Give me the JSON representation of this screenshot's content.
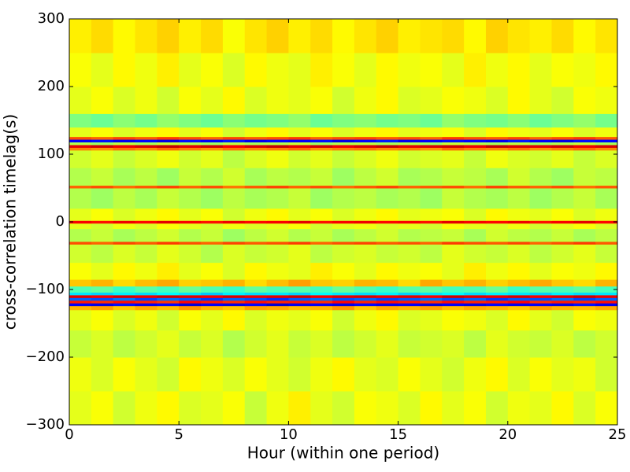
{
  "chart_data": {
    "type": "heatmap",
    "xlabel": "Hour (within one period)",
    "ylabel": "cross-correlation timelag(s)",
    "colormap": "jet",
    "zlim": [
      0,
      1
    ],
    "xlim": [
      0,
      25
    ],
    "ylim": [
      -300,
      300
    ],
    "xticks": [
      0,
      5,
      10,
      15,
      20,
      25
    ],
    "yticks": [
      {
        "value": -300,
        "label": "−300"
      },
      {
        "value": -200,
        "label": "−200"
      },
      {
        "value": -100,
        "label": "−100"
      },
      0,
      100,
      200,
      300
    ],
    "x": [
      0,
      1,
      2,
      3,
      4,
      5,
      6,
      7,
      8,
      9,
      10,
      11,
      12,
      13,
      14,
      15,
      16,
      17,
      18,
      19,
      20,
      21,
      22,
      23,
      24,
      25
    ],
    "y": [
      -300,
      -250,
      -200,
      -160,
      -130,
      -124,
      -120,
      -116,
      -112,
      -108,
      -104,
      -95,
      -85,
      -60,
      -33,
      -29,
      -10,
      -2,
      2,
      20,
      50,
      54,
      80,
      106,
      110,
      114,
      118,
      122,
      126,
      140,
      160,
      200,
      250,
      300
    ],
    "z": [
      [
        0.6,
        0.62,
        0.58,
        0.61,
        0.63,
        0.59,
        0.6,
        0.62,
        0.57,
        0.61,
        0.64,
        0.6,
        0.58,
        0.62,
        0.61,
        0.59,
        0.63,
        0.6,
        0.62,
        0.58,
        0.61,
        0.6,
        0.63,
        0.59,
        0.62
      ],
      [
        0.61,
        0.59,
        0.62,
        0.6,
        0.58,
        0.63,
        0.61,
        0.59,
        0.62,
        0.6,
        0.58,
        0.61,
        0.63,
        0.6,
        0.59,
        0.62,
        0.6,
        0.58,
        0.61,
        0.63,
        0.59,
        0.62,
        0.6,
        0.61,
        0.58
      ],
      [
        0.57,
        0.59,
        0.56,
        0.58,
        0.6,
        0.57,
        0.59,
        0.55,
        0.58,
        0.6,
        0.57,
        0.59,
        0.56,
        0.58,
        0.6,
        0.57,
        0.58,
        0.59,
        0.56,
        0.6,
        0.58,
        0.57,
        0.59,
        0.56,
        0.58
      ],
      [
        0.6,
        0.62,
        0.59,
        0.61,
        0.58,
        0.62,
        0.6,
        0.63,
        0.59,
        0.61,
        0.6,
        0.62,
        0.58,
        0.61,
        0.63,
        0.59,
        0.6,
        0.62,
        0.61,
        0.59,
        0.63,
        0.6,
        0.58,
        0.62,
        0.61
      ],
      [
        0.7,
        0.72,
        0.68,
        0.71,
        0.69,
        0.73,
        0.7,
        0.68,
        0.72,
        0.71,
        0.69,
        0.7,
        0.73,
        0.68,
        0.71,
        0.7,
        0.72,
        0.69,
        0.71,
        0.7,
        0.68,
        0.72,
        0.7,
        0.69,
        0.71
      ],
      [
        0.12,
        0.1,
        0.14,
        0.11,
        0.13,
        0.09,
        0.12,
        0.1,
        0.13,
        0.08,
        0.11,
        0.12,
        0.1,
        0.13,
        0.11,
        0.12,
        0.09,
        0.12,
        0.1,
        0.13,
        0.11,
        0.12,
        0.1,
        0.14,
        0.11
      ],
      [
        0.85,
        0.83,
        0.86,
        0.84,
        0.82,
        0.87,
        0.85,
        0.83,
        0.86,
        0.84,
        0.85,
        0.83,
        0.87,
        0.84,
        0.86,
        0.85,
        0.83,
        0.86,
        0.84,
        0.85,
        0.87,
        0.83,
        0.85,
        0.84,
        0.86
      ],
      [
        0.22,
        0.2,
        0.24,
        0.19,
        0.23,
        0.21,
        0.18,
        0.22,
        0.2,
        0.17,
        0.21,
        0.23,
        0.2,
        0.22,
        0.19,
        0.21,
        0.23,
        0.2,
        0.22,
        0.18,
        0.21,
        0.2,
        0.23,
        0.19,
        0.22
      ],
      [
        0.9,
        0.88,
        0.91,
        0.89,
        0.92,
        0.9,
        0.88,
        0.91,
        0.89,
        0.9,
        0.92,
        0.88,
        0.9,
        0.91,
        0.89,
        0.9,
        0.88,
        0.92,
        0.9,
        0.89,
        0.91,
        0.88,
        0.9,
        0.92,
        0.89
      ],
      [
        0.35,
        0.33,
        0.36,
        0.34,
        0.37,
        0.35,
        0.32,
        0.36,
        0.34,
        0.35,
        0.33,
        0.37,
        0.35,
        0.34,
        0.36,
        0.33,
        0.35,
        0.37,
        0.34,
        0.36,
        0.35,
        0.33,
        0.36,
        0.34,
        0.35
      ],
      [
        0.45,
        0.47,
        0.43,
        0.46,
        0.44,
        0.48,
        0.45,
        0.43,
        0.47,
        0.45,
        0.46,
        0.44,
        0.48,
        0.45,
        0.43,
        0.46,
        0.47,
        0.44,
        0.45,
        0.48,
        0.43,
        0.46,
        0.45,
        0.47,
        0.44
      ],
      [
        0.68,
        0.7,
        0.66,
        0.69,
        0.71,
        0.67,
        0.68,
        0.7,
        0.66,
        0.69,
        0.72,
        0.68,
        0.67,
        0.7,
        0.69,
        0.66,
        0.71,
        0.68,
        0.7,
        0.67,
        0.69,
        0.71,
        0.68,
        0.66,
        0.7
      ],
      [
        0.62,
        0.6,
        0.63,
        0.61,
        0.64,
        0.6,
        0.62,
        0.59,
        0.63,
        0.61,
        0.6,
        0.64,
        0.62,
        0.6,
        0.63,
        0.61,
        0.62,
        0.6,
        0.64,
        0.61,
        0.63,
        0.6,
        0.62,
        0.61,
        0.63
      ],
      [
        0.58,
        0.56,
        0.59,
        0.57,
        0.6,
        0.58,
        0.55,
        0.59,
        0.57,
        0.58,
        0.6,
        0.56,
        0.58,
        0.59,
        0.57,
        0.58,
        0.56,
        0.6,
        0.58,
        0.57,
        0.59,
        0.56,
        0.58,
        0.6,
        0.57
      ],
      [
        0.8,
        0.78,
        0.81,
        0.79,
        0.82,
        0.8,
        0.78,
        0.81,
        0.79,
        0.8,
        0.82,
        0.78,
        0.8,
        0.81,
        0.79,
        0.8,
        0.78,
        0.82,
        0.8,
        0.79,
        0.81,
        0.78,
        0.8,
        0.82,
        0.79
      ],
      [
        0.55,
        0.57,
        0.54,
        0.56,
        0.58,
        0.55,
        0.57,
        0.53,
        0.56,
        0.58,
        0.55,
        0.57,
        0.54,
        0.56,
        0.58,
        0.55,
        0.56,
        0.57,
        0.54,
        0.58,
        0.56,
        0.55,
        0.57,
        0.54,
        0.56
      ],
      [
        0.6,
        0.58,
        0.61,
        0.59,
        0.62,
        0.6,
        0.58,
        0.61,
        0.59,
        0.6,
        0.62,
        0.58,
        0.6,
        0.61,
        0.59,
        0.6,
        0.58,
        0.62,
        0.6,
        0.59,
        0.61,
        0.58,
        0.6,
        0.62,
        0.59
      ],
      [
        0.88,
        0.86,
        0.89,
        0.87,
        0.9,
        0.88,
        0.86,
        0.89,
        0.87,
        0.88,
        0.9,
        0.86,
        0.88,
        0.89,
        0.87,
        0.88,
        0.86,
        0.9,
        0.88,
        0.87,
        0.89,
        0.86,
        0.88,
        0.9,
        0.87
      ],
      [
        0.6,
        0.62,
        0.59,
        0.61,
        0.63,
        0.6,
        0.62,
        0.58,
        0.61,
        0.63,
        0.6,
        0.62,
        0.59,
        0.61,
        0.63,
        0.6,
        0.61,
        0.62,
        0.59,
        0.63,
        0.61,
        0.6,
        0.62,
        0.59,
        0.61
      ],
      [
        0.55,
        0.53,
        0.56,
        0.54,
        0.57,
        0.55,
        0.53,
        0.56,
        0.54,
        0.55,
        0.57,
        0.53,
        0.55,
        0.56,
        0.54,
        0.55,
        0.53,
        0.57,
        0.55,
        0.54,
        0.56,
        0.53,
        0.55,
        0.57,
        0.54
      ],
      [
        0.78,
        0.8,
        0.77,
        0.79,
        0.81,
        0.78,
        0.8,
        0.76,
        0.79,
        0.81,
        0.78,
        0.8,
        0.77,
        0.79,
        0.81,
        0.78,
        0.79,
        0.8,
        0.77,
        0.81,
        0.79,
        0.78,
        0.8,
        0.77,
        0.79
      ],
      [
        0.55,
        0.57,
        0.54,
        0.56,
        0.53,
        0.57,
        0.55,
        0.58,
        0.54,
        0.56,
        0.55,
        0.57,
        0.53,
        0.56,
        0.58,
        0.54,
        0.55,
        0.57,
        0.56,
        0.54,
        0.58,
        0.55,
        0.53,
        0.57,
        0.56
      ],
      [
        0.58,
        0.6,
        0.57,
        0.59,
        0.61,
        0.58,
        0.6,
        0.56,
        0.59,
        0.61,
        0.58,
        0.6,
        0.57,
        0.59,
        0.61,
        0.58,
        0.59,
        0.6,
        0.57,
        0.61,
        0.59,
        0.58,
        0.6,
        0.57,
        0.59
      ],
      [
        0.75,
        0.73,
        0.76,
        0.74,
        0.77,
        0.75,
        0.73,
        0.76,
        0.74,
        0.75,
        0.77,
        0.73,
        0.75,
        0.76,
        0.74,
        0.75,
        0.73,
        0.77,
        0.75,
        0.74,
        0.76,
        0.73,
        0.75,
        0.77,
        0.74
      ],
      [
        0.9,
        0.92,
        0.89,
        0.91,
        0.93,
        0.9,
        0.92,
        0.88,
        0.91,
        0.93,
        0.9,
        0.92,
        0.89,
        0.91,
        0.93,
        0.9,
        0.91,
        0.92,
        0.89,
        0.93,
        0.91,
        0.9,
        0.92,
        0.89,
        0.91
      ],
      [
        0.55,
        0.53,
        0.56,
        0.54,
        0.57,
        0.55,
        0.53,
        0.56,
        0.54,
        0.55,
        0.57,
        0.53,
        0.55,
        0.56,
        0.54,
        0.55,
        0.53,
        0.57,
        0.55,
        0.54,
        0.56,
        0.53,
        0.55,
        0.57,
        0.54
      ],
      [
        0.12,
        0.14,
        0.11,
        0.13,
        0.1,
        0.14,
        0.12,
        0.15,
        0.11,
        0.13,
        0.12,
        0.14,
        0.1,
        0.13,
        0.15,
        0.11,
        0.12,
        0.14,
        0.13,
        0.11,
        0.15,
        0.12,
        0.1,
        0.14,
        0.13
      ],
      [
        0.8,
        0.78,
        0.81,
        0.79,
        0.82,
        0.8,
        0.78,
        0.81,
        0.79,
        0.8,
        0.82,
        0.78,
        0.8,
        0.81,
        0.79,
        0.8,
        0.78,
        0.82,
        0.8,
        0.79,
        0.81,
        0.78,
        0.8,
        0.82,
        0.79
      ],
      [
        0.6,
        0.62,
        0.59,
        0.61,
        0.63,
        0.6,
        0.62,
        0.58,
        0.61,
        0.63,
        0.6,
        0.62,
        0.59,
        0.61,
        0.63,
        0.6,
        0.61,
        0.62,
        0.59,
        0.63,
        0.61,
        0.6,
        0.62,
        0.59,
        0.61
      ],
      [
        0.5,
        0.48,
        0.51,
        0.49,
        0.52,
        0.5,
        0.48,
        0.51,
        0.49,
        0.5,
        0.52,
        0.48,
        0.5,
        0.51,
        0.49,
        0.5,
        0.48,
        0.52,
        0.5,
        0.49,
        0.51,
        0.48,
        0.5,
        0.52,
        0.49
      ],
      [
        0.6,
        0.62,
        0.59,
        0.61,
        0.58,
        0.62,
        0.6,
        0.63,
        0.59,
        0.61,
        0.6,
        0.62,
        0.58,
        0.61,
        0.63,
        0.59,
        0.6,
        0.62,
        0.61,
        0.59,
        0.63,
        0.6,
        0.58,
        0.62,
        0.61
      ],
      [
        0.62,
        0.6,
        0.63,
        0.61,
        0.64,
        0.6,
        0.62,
        0.59,
        0.63,
        0.61,
        0.6,
        0.64,
        0.62,
        0.6,
        0.63,
        0.61,
        0.62,
        0.6,
        0.64,
        0.61,
        0.63,
        0.6,
        0.62,
        0.61,
        0.63
      ],
      [
        0.64,
        0.66,
        0.63,
        0.65,
        0.67,
        0.64,
        0.66,
        0.62,
        0.65,
        0.67,
        0.64,
        0.66,
        0.63,
        0.65,
        0.67,
        0.64,
        0.65,
        0.66,
        0.63,
        0.67,
        0.65,
        0.64,
        0.66,
        0.63,
        0.65
      ]
    ]
  }
}
